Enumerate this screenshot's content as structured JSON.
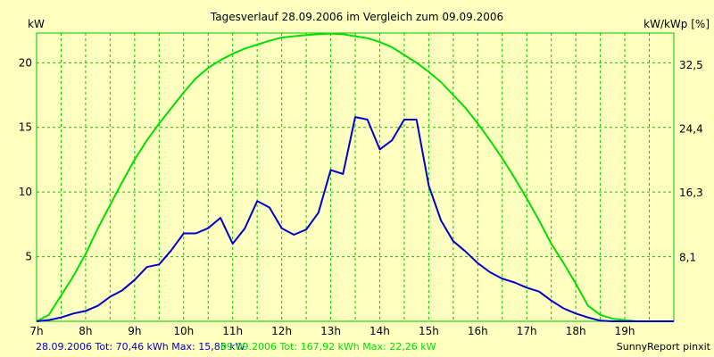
{
  "chart_data": {
    "type": "line",
    "title": "Tagesverlauf 28.09.2006 im Vergleich zum 09.09.2006",
    "ylabel_left": "kW",
    "ylabel_right": "kW/kWp [%]",
    "xlim": [
      7,
      20
    ],
    "ylim_left": [
      0,
      22.3
    ],
    "ylim_right": [
      0,
      36.6
    ],
    "x_ticks": [
      7,
      8,
      9,
      10,
      11,
      12,
      13,
      14,
      15,
      16,
      17,
      18,
      19
    ],
    "x_tick_labels": [
      "7h",
      "8h",
      "9h",
      "10h",
      "11h",
      "12h",
      "13h",
      "14h",
      "15h",
      "16h",
      "17h",
      "18h",
      "19h"
    ],
    "y_ticks_left": [
      5,
      10,
      15,
      20
    ],
    "y_tick_labels_left": [
      "5",
      "10",
      "15",
      "20"
    ],
    "y_ticks_right": [
      8.1,
      16.3,
      24.4,
      32.5
    ],
    "y_tick_labels_right": [
      "8,1",
      "16,3",
      "24,4",
      "32,5"
    ],
    "grid": true,
    "series": [
      {
        "name": "28.09.2006",
        "color": "#0000cc",
        "x": [
          7,
          7.25,
          7.5,
          7.75,
          8,
          8.25,
          8.5,
          8.75,
          9,
          9.25,
          9.5,
          9.75,
          10,
          10.25,
          10.5,
          10.75,
          11,
          11.25,
          11.5,
          11.75,
          12,
          12.25,
          12.5,
          12.75,
          13,
          13.25,
          13.5,
          13.75,
          14,
          14.25,
          14.5,
          14.75,
          15,
          15.25,
          15.5,
          15.75,
          16,
          16.25,
          16.5,
          16.75,
          17,
          17.25,
          17.5,
          17.75,
          18,
          18.25,
          18.5,
          18.75,
          19,
          19.25,
          19.5,
          19.75,
          20
        ],
        "values": [
          0,
          0.1,
          0.3,
          0.6,
          0.8,
          1.2,
          1.9,
          2.4,
          3.2,
          4.2,
          4.4,
          5.5,
          6.8,
          6.8,
          7.2,
          8,
          6,
          7.2,
          9.3,
          8.8,
          7.2,
          6.7,
          7.1,
          8.4,
          11.7,
          11.4,
          15.8,
          15.6,
          13.3,
          14,
          15.6,
          15.6,
          10.5,
          7.8,
          6.2,
          5.4,
          4.5,
          3.8,
          3.3,
          3,
          2.6,
          2.3,
          1.6,
          1,
          0.6,
          0.3,
          0.05,
          0,
          0,
          0,
          0,
          0,
          0
        ]
      },
      {
        "name": "09.09.2006",
        "color": "#00e000",
        "x": [
          7,
          7.25,
          7.5,
          7.75,
          8,
          8.25,
          8.5,
          8.75,
          9,
          9.25,
          9.5,
          9.75,
          10,
          10.25,
          10.5,
          10.75,
          11,
          11.25,
          11.5,
          11.75,
          12,
          12.25,
          12.5,
          12.75,
          13,
          13.25,
          13.5,
          13.75,
          14,
          14.25,
          14.5,
          14.75,
          15,
          15.25,
          15.5,
          15.75,
          16,
          16.25,
          16.5,
          16.75,
          17,
          17.25,
          17.5,
          17.75,
          18,
          18.25,
          18.5,
          18.75,
          19,
          19.25,
          19.5,
          19.75,
          20
        ],
        "values": [
          0,
          0.5,
          2,
          3.5,
          5.2,
          7.2,
          9,
          10.8,
          12.5,
          14,
          15.3,
          16.5,
          17.7,
          18.8,
          19.6,
          20.2,
          20.7,
          21.1,
          21.4,
          21.7,
          21.95,
          22.05,
          22.15,
          22.2,
          22.26,
          22.2,
          22.05,
          21.9,
          21.6,
          21.2,
          20.6,
          20,
          19.3,
          18.5,
          17.5,
          16.5,
          15.3,
          14,
          12.6,
          11.1,
          9.5,
          7.8,
          6,
          4.5,
          2.9,
          1.2,
          0.5,
          0.2,
          0.1,
          0,
          0,
          0,
          0
        ]
      }
    ],
    "footer_series1_text": "28.09.2006 Tot: 70,46 kWh Max: 15,85 kW",
    "footer_series2_text": "09.09.2006 Tot: 167,92 kWh Max: 22,26 kW",
    "credit": "SunnyReport pinxit"
  }
}
